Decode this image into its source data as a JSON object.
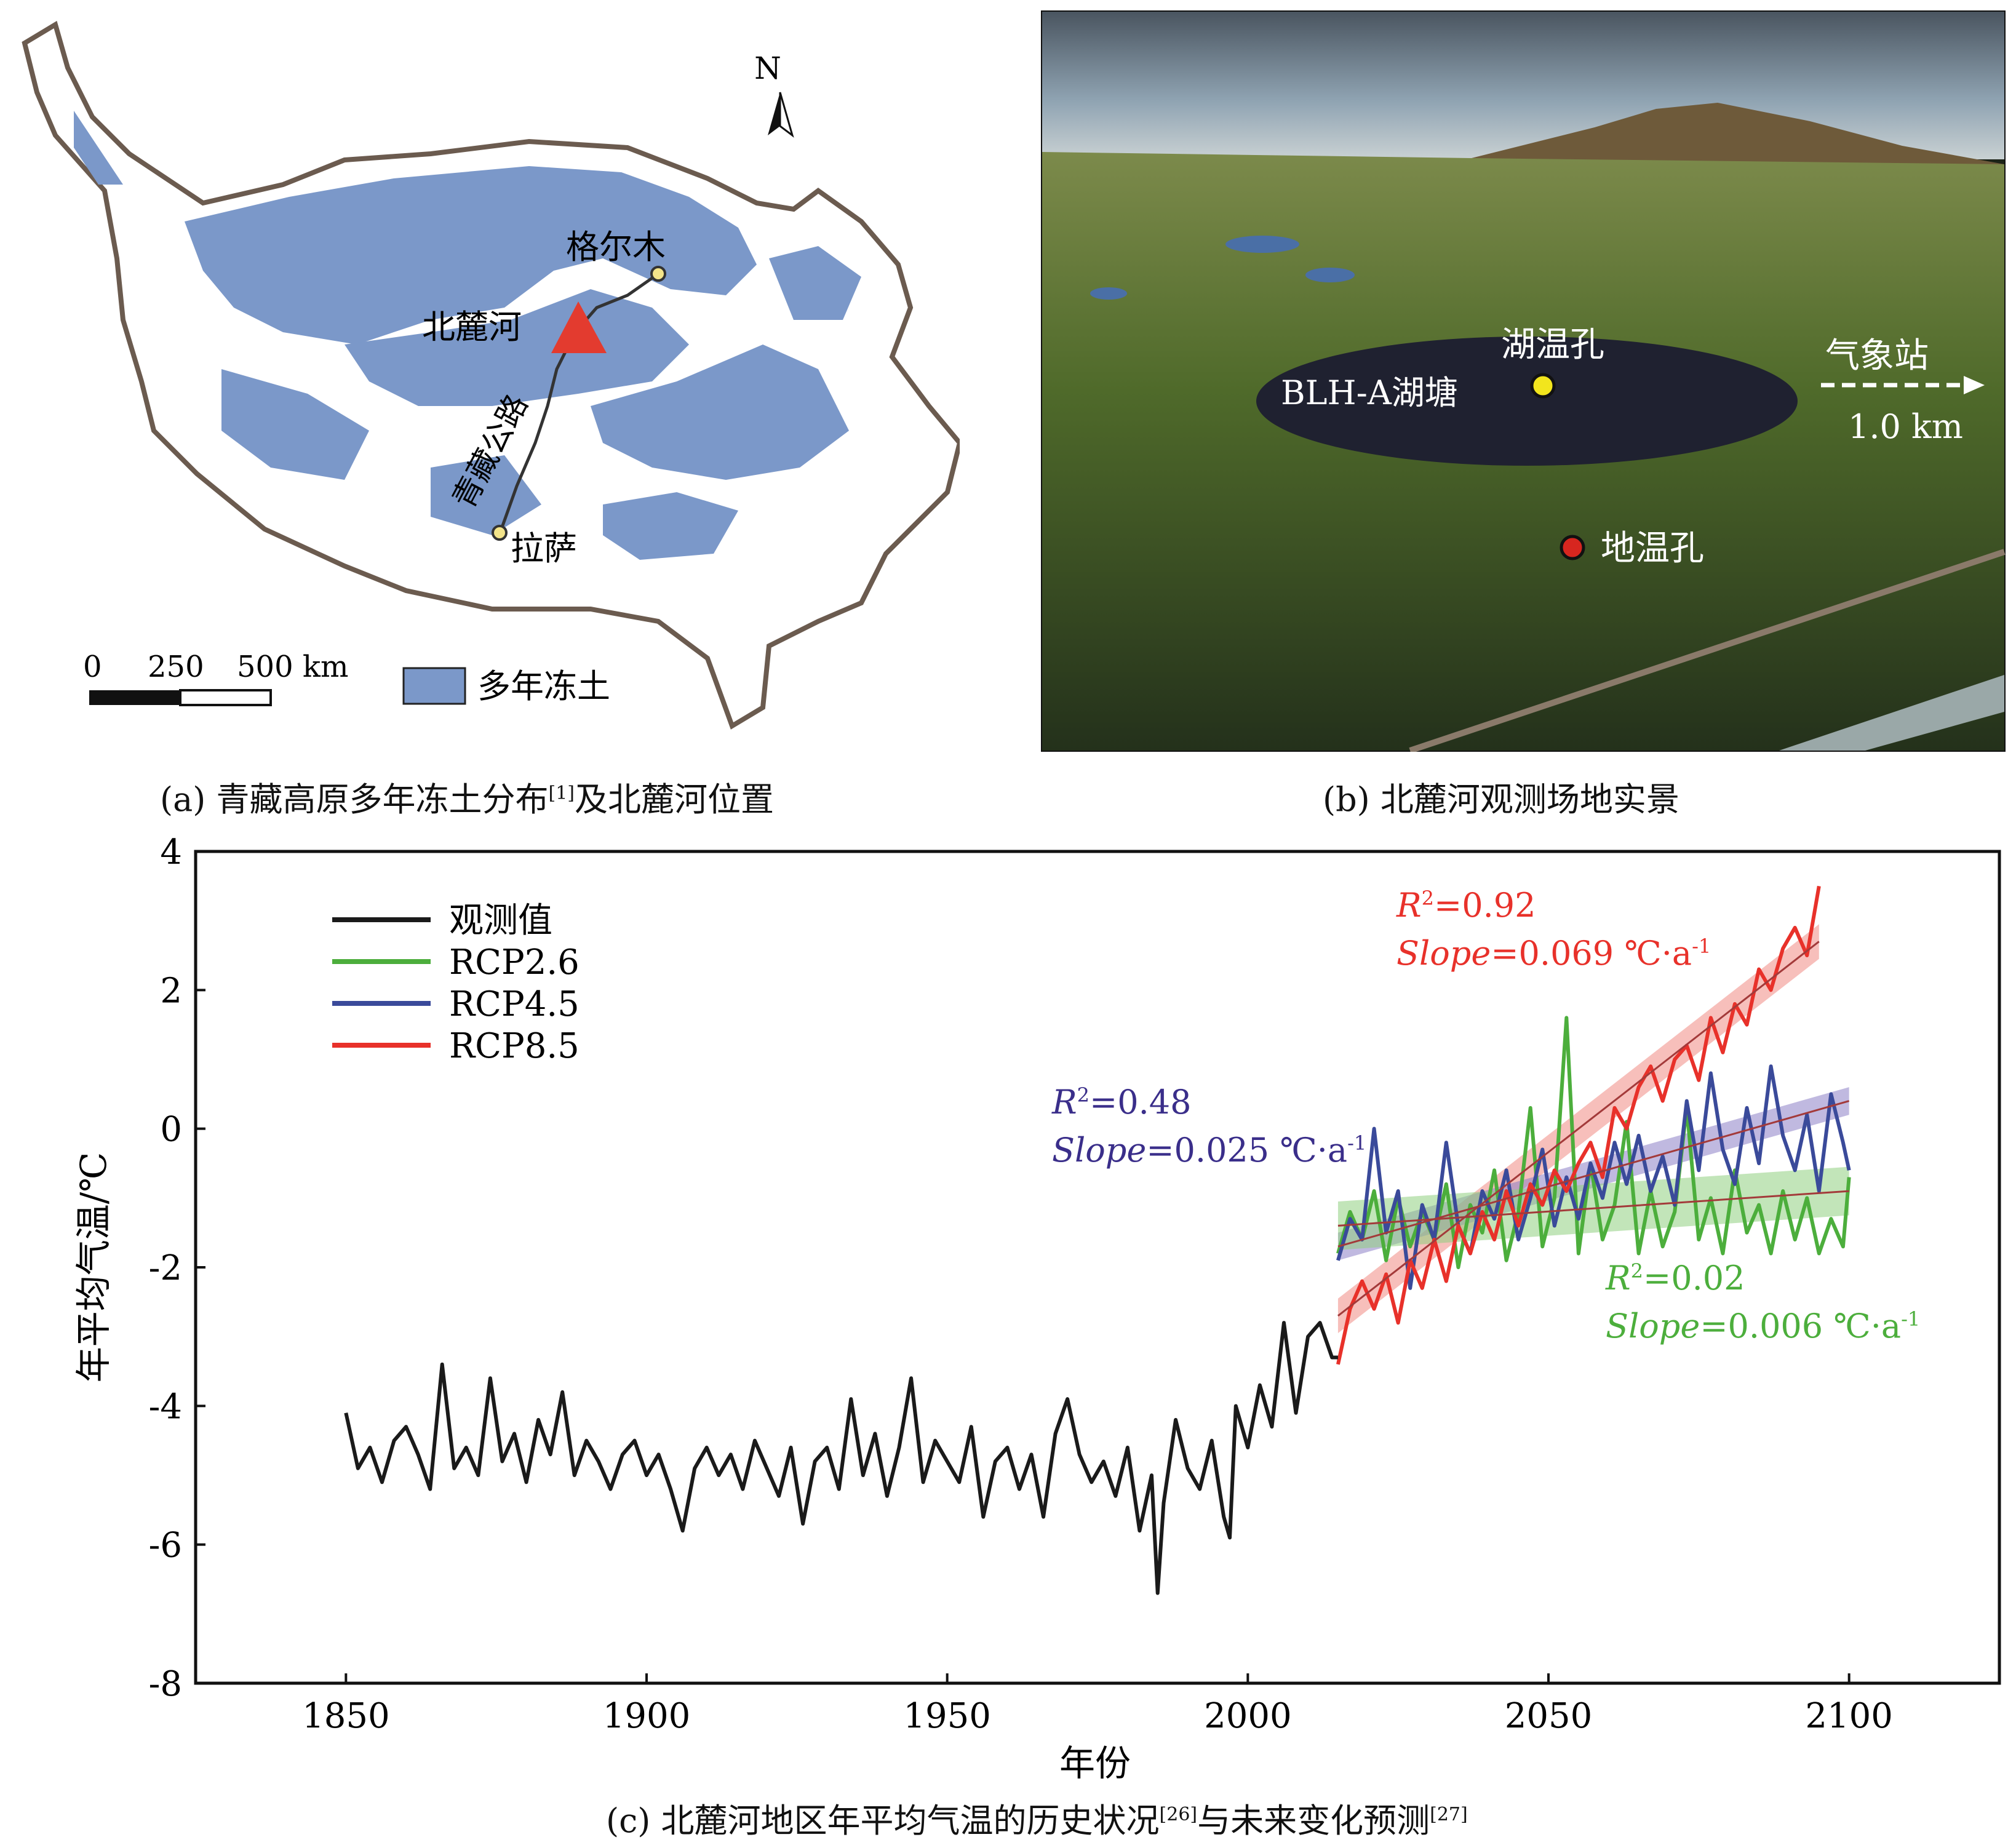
{
  "panel_a": {
    "compass": "N",
    "places": {
      "golmud": "格尔木",
      "beiluhe": "北麓河",
      "lhasa": "拉萨",
      "road": "青藏公路"
    },
    "scale": {
      "t0": "0",
      "t1": "250",
      "t2": "500 km"
    },
    "legend": "多年冻土",
    "caption_pre": "(a) 青藏高原多年冻土分布",
    "caption_ref": "[1]",
    "caption_post": "及北麓河位置",
    "colors": {
      "permafrost": "#7b98c9",
      "border": "#6b5b4f",
      "triangle": "#e33b2f"
    }
  },
  "panel_b": {
    "labels": {
      "lake_hole": "湖温孔",
      "pond": "BLH-A湖塘",
      "ground_hole": "地温孔",
      "station": "气象站",
      "distance": "1.0 km"
    },
    "caption": "(b) 北麓河观测场地实景"
  },
  "chart_data": {
    "type": "line",
    "xlabel": "年份",
    "ylabel": "年平均气温/℃",
    "xlim": [
      1825,
      2125
    ],
    "ylim": [
      -8,
      4
    ],
    "xticks": [
      1850,
      1900,
      1950,
      2000,
      2050,
      2100
    ],
    "yticks": [
      4,
      2,
      0,
      -2,
      -4,
      -6,
      -8
    ],
    "legend_position": "top-left",
    "legend": [
      "观测值",
      "RCP2.6",
      "RCP4.5",
      "RCP8.5"
    ],
    "colors": {
      "obs": "#1a1a1a",
      "rcp26": "#4cae3c",
      "rcp45": "#3a4a9a",
      "rcp85": "#e8312a",
      "fit": "#a33a3a"
    },
    "series": [
      {
        "name": "观测值",
        "x": [
          1850,
          1852,
          1854,
          1856,
          1858,
          1860,
          1862,
          1864,
          1866,
          1868,
          1870,
          1872,
          1874,
          1876,
          1878,
          1880,
          1882,
          1884,
          1886,
          1888,
          1890,
          1892,
          1894,
          1896,
          1898,
          1900,
          1902,
          1904,
          1906,
          1908,
          1910,
          1912,
          1914,
          1916,
          1918,
          1920,
          1922,
          1924,
          1926,
          1928,
          1930,
          1932,
          1934,
          1936,
          1938,
          1940,
          1942,
          1944,
          1946,
          1948,
          1950,
          1952,
          1954,
          1956,
          1958,
          1960,
          1962,
          1964,
          1966,
          1968,
          1970,
          1972,
          1974,
          1976,
          1978,
          1980,
          1982,
          1984,
          1985,
          1986,
          1988,
          1990,
          1992,
          1994,
          1996,
          1997,
          1998,
          2000,
          2002,
          2004,
          2006,
          2008,
          2010,
          2012,
          2014,
          2015
        ],
        "values": [
          -4.1,
          -4.9,
          -4.6,
          -5.1,
          -4.5,
          -4.3,
          -4.7,
          -5.2,
          -3.4,
          -4.9,
          -4.6,
          -5.0,
          -3.6,
          -4.8,
          -4.4,
          -5.1,
          -4.2,
          -4.7,
          -3.8,
          -5.0,
          -4.5,
          -4.8,
          -5.2,
          -4.7,
          -4.5,
          -5.0,
          -4.7,
          -5.2,
          -5.8,
          -4.9,
          -4.6,
          -5.0,
          -4.7,
          -5.2,
          -4.5,
          -4.9,
          -5.3,
          -4.6,
          -5.7,
          -4.8,
          -4.6,
          -5.2,
          -3.9,
          -5.0,
          -4.4,
          -5.3,
          -4.6,
          -3.6,
          -5.1,
          -4.5,
          -4.8,
          -5.1,
          -4.3,
          -5.6,
          -4.8,
          -4.6,
          -5.2,
          -4.7,
          -5.6,
          -4.4,
          -3.9,
          -4.7,
          -5.1,
          -4.8,
          -5.3,
          -4.6,
          -5.8,
          -5.0,
          -6.7,
          -5.4,
          -4.2,
          -4.9,
          -5.2,
          -4.5,
          -5.6,
          -5.9,
          -4.0,
          -4.6,
          -3.7,
          -4.3,
          -2.8,
          -4.1,
          -3.0,
          -2.8,
          -3.3,
          -3.3
        ]
      },
      {
        "name": "RCP2.6",
        "x": [
          2015,
          2017,
          2019,
          2021,
          2023,
          2025,
          2027,
          2029,
          2031,
          2033,
          2035,
          2037,
          2039,
          2041,
          2043,
          2045,
          2047,
          2049,
          2051,
          2053,
          2055,
          2057,
          2059,
          2061,
          2063,
          2065,
          2067,
          2069,
          2071,
          2073,
          2075,
          2077,
          2079,
          2081,
          2083,
          2085,
          2087,
          2089,
          2091,
          2093,
          2095,
          2097,
          2099,
          2100
        ],
        "values": [
          -1.8,
          -1.2,
          -1.6,
          -0.9,
          -1.9,
          -1.0,
          -1.7,
          -1.2,
          -1.6,
          -0.8,
          -2.0,
          -1.1,
          -1.5,
          -0.6,
          -1.9,
          -1.2,
          0.3,
          -1.7,
          -1.0,
          1.6,
          -1.8,
          -0.5,
          -1.6,
          -1.1,
          0.1,
          -1.8,
          -0.9,
          -1.7,
          -1.2,
          0.3,
          -1.6,
          -1.0,
          -1.8,
          -0.6,
          -1.5,
          -1.1,
          -1.8,
          -0.9,
          -1.6,
          -1.0,
          -1.8,
          -1.3,
          -1.7,
          -0.7
        ]
      },
      {
        "name": "RCP4.5",
        "x": [
          2015,
          2017,
          2019,
          2021,
          2023,
          2025,
          2027,
          2029,
          2031,
          2033,
          2035,
          2037,
          2039,
          2041,
          2043,
          2045,
          2047,
          2049,
          2051,
          2053,
          2055,
          2057,
          2059,
          2061,
          2063,
          2065,
          2067,
          2069,
          2071,
          2073,
          2075,
          2077,
          2079,
          2081,
          2083,
          2085,
          2087,
          2089,
          2091,
          2093,
          2095,
          2097,
          2099,
          2100
        ],
        "values": [
          -1.9,
          -1.3,
          -1.6,
          0.0,
          -1.5,
          -0.9,
          -2.3,
          -1.1,
          -1.6,
          -0.2,
          -1.4,
          -1.8,
          -0.9,
          -1.3,
          -0.6,
          -1.6,
          -1.0,
          -0.3,
          -1.4,
          -0.7,
          -1.3,
          -0.5,
          -1.0,
          -0.2,
          -0.8,
          -0.1,
          -0.9,
          -0.4,
          -1.1,
          0.4,
          -0.6,
          0.8,
          -0.3,
          -0.8,
          0.3,
          -0.5,
          0.9,
          -0.1,
          -0.6,
          0.2,
          -0.9,
          0.5,
          -0.2,
          -0.6
        ]
      },
      {
        "name": "RCP8.5",
        "x": [
          2015,
          2017,
          2019,
          2021,
          2023,
          2025,
          2027,
          2029,
          2031,
          2033,
          2035,
          2037,
          2039,
          2041,
          2043,
          2045,
          2047,
          2049,
          2051,
          2053,
          2055,
          2057,
          2059,
          2061,
          2063,
          2065,
          2067,
          2069,
          2071,
          2073,
          2075,
          2077,
          2079,
          2081,
          2083,
          2085,
          2087,
          2089,
          2091,
          2093,
          2095
        ],
        "values": [
          -3.4,
          -2.6,
          -2.2,
          -2.6,
          -2.1,
          -2.8,
          -1.9,
          -2.3,
          -1.6,
          -2.2,
          -1.4,
          -1.8,
          -1.2,
          -1.6,
          -0.9,
          -1.4,
          -0.8,
          -1.1,
          -0.6,
          -0.9,
          -0.5,
          -0.2,
          -0.7,
          0.3,
          0.0,
          0.6,
          0.9,
          0.4,
          1.0,
          1.2,
          0.7,
          1.6,
          1.1,
          1.8,
          1.5,
          2.3,
          2.0,
          2.6,
          2.9,
          2.5,
          3.5
        ]
      }
    ],
    "fits": [
      {
        "name": "RCP8.5",
        "r2_var": "R",
        "r2_sup": "2",
        "r2_value": "=0.92",
        "slope_var": "Slope",
        "slope_value": "=0.069 ℃·a",
        "slope_sup": "-1",
        "x": [
          2015,
          2095
        ],
        "y": [
          -2.7,
          2.7
        ]
      },
      {
        "name": "RCP4.5",
        "r2_var": "R",
        "r2_sup": "2",
        "r2_value": "=0.48",
        "slope_var": "Slope",
        "slope_value": "=0.025 ℃·a",
        "slope_sup": "-1",
        "x": [
          2015,
          2100
        ],
        "y": [
          -1.7,
          0.4
        ]
      },
      {
        "name": "RCP2.6",
        "r2_var": "R",
        "r2_sup": "2",
        "r2_value": "=0.02",
        "slope_var": "Slope",
        "slope_value": "=0.006 ℃·a",
        "slope_sup": "-1",
        "x": [
          2015,
          2100
        ],
        "y": [
          -1.4,
          -0.9
        ]
      }
    ]
  },
  "panel_c": {
    "caption_pre": "(c) 北麓河地区年平均气温的历史状况",
    "caption_ref1": "[26]",
    "caption_mid": "与未来变化预测",
    "caption_ref2": "[27]"
  }
}
